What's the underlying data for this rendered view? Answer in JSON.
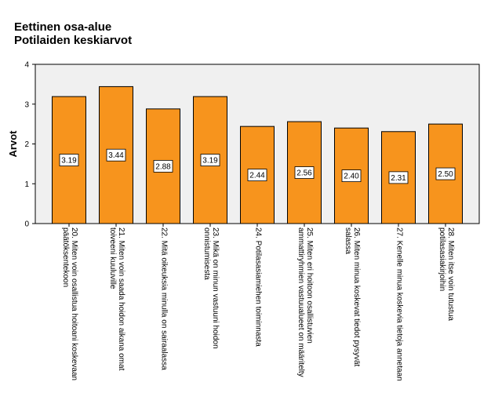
{
  "title": "Eettinen osa-alue",
  "subtitle": "Potilaiden keskiarvot",
  "chart_data": {
    "type": "bar",
    "title": "Eettinen osa-alue",
    "subtitle": "Potilaiden keskiarvot",
    "xlabel": "",
    "ylabel": "Arvot",
    "ylim": [
      0,
      4
    ],
    "yticks": [
      0,
      1,
      2,
      3,
      4
    ],
    "grid": false,
    "categories": [
      [
        "20. Miten voin osallistua hoitoani koskevaan",
        "päätöksentekoon"
      ],
      [
        "21. Miten voin saada hoidon aikana omat",
        "toiveeni kuuluville"
      ],
      [
        "22. Mitä oikeuksia minulla on sairaalassa"
      ],
      [
        "23. Mikä on minun vastuuni hoidon",
        "onnistumisesta"
      ],
      [
        "24. Potilasasiamiehen toiminnasta"
      ],
      [
        "25. Miten eri hoitoon osallistuvien",
        "ammattiryhmien vastuualueet on määritelty"
      ],
      [
        "26. Miten minua koskevat tiedot pysyvät",
        "salassa"
      ],
      [
        "27. Kenelle minua koskevia tietoja annetaan"
      ],
      [
        "28. Miten itse voin tutustua",
        "potilasasiakirjoihin"
      ]
    ],
    "values": [
      3.19,
      3.44,
      2.88,
      3.19,
      2.44,
      2.56,
      2.4,
      2.31,
      2.5
    ],
    "data_labels": [
      "3.19",
      "3.44",
      "2.88",
      "3.19",
      "2.44",
      "2.56",
      "2.40",
      "2.31",
      "2.50"
    ],
    "colors": {
      "bar": "#f7941d",
      "bar_stroke": "#000000",
      "plot_bg": "#f0f0f0"
    }
  }
}
